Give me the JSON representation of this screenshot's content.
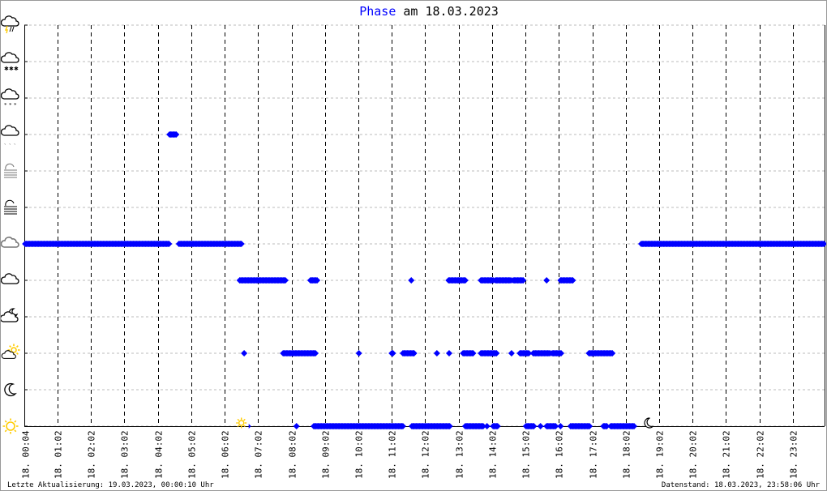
{
  "title": {
    "highlight": "Phase",
    "rest": " am 18.03.2023"
  },
  "footer": {
    "left": "Letzte Aktualisierung: 19.03.2023, 00:00:10 Uhr",
    "right": "Datenstand: 18.03.2023, 23:58:06 Uhr"
  },
  "colors": {
    "points": "#0000ff",
    "grid": "#bbbbbb",
    "hour_lines": "#000000",
    "sun": "#ffcc00"
  },
  "chart_data": {
    "type": "scatter",
    "title": "Phase am 18.03.2023",
    "x_axis": {
      "unit": "time of day",
      "range": [
        "00:04",
        "23:58"
      ],
      "tick_labels": [
        "18. 00:04",
        "18. 01:02",
        "18. 02:02",
        "18. 03:02",
        "18. 04:02",
        "18. 05:02",
        "18. 06:02",
        "18. 07:02",
        "18. 08:02",
        "18. 09:02",
        "18. 10:02",
        "18. 11:02",
        "18. 12:02",
        "18. 13:02",
        "18. 14:02",
        "18. 15:02",
        "18. 16:02",
        "18. 17:02",
        "18. 18:02",
        "18. 19:02",
        "18. 20:02",
        "18. 21:02",
        "18. 22:02",
        "18. 23:02"
      ]
    },
    "y_axis": {
      "type": "categorical-icons",
      "categories": [
        "sun-icon",
        "moon-icon",
        "partly-sunny-icon",
        "partly-moon-icon",
        "cloudy-icon",
        "overcast-icon",
        "fog-icon",
        "mist-icon",
        "rain-icon",
        "sleet-icon",
        "snow-icon",
        "thunderstorm-icon"
      ]
    },
    "grid": true,
    "markers": {
      "sunrise": "06:32",
      "sunset": "18:22"
    },
    "series": [
      {
        "category": "overcast-icon",
        "ranges": [
          [
            "00:04",
            "04:22"
          ],
          [
            "04:40",
            "06:32"
          ],
          [
            "18:30",
            "23:58"
          ]
        ]
      },
      {
        "category": "rain-icon",
        "ranges": [
          [
            "04:23",
            "04:36"
          ]
        ]
      },
      {
        "category": "cloudy-icon",
        "ranges": [
          [
            "06:29",
            "07:51"
          ],
          [
            "08:36",
            "08:49"
          ],
          [
            "11:37",
            "11:37"
          ],
          [
            "12:44",
            "13:14"
          ],
          [
            "13:42",
            "14:04"
          ],
          [
            "14:08",
            "14:37"
          ],
          [
            "14:40",
            "14:58"
          ],
          [
            "15:40",
            "15:40"
          ],
          [
            "16:05",
            "16:28"
          ]
        ]
      },
      {
        "category": "partly-sunny-icon",
        "ranges": [
          [
            "06:37",
            "06:37"
          ],
          [
            "07:47",
            "08:46"
          ],
          [
            "10:03",
            "10:03"
          ],
          [
            "11:02",
            "11:05"
          ],
          [
            "11:22",
            "11:43"
          ],
          [
            "12:23",
            "12:23"
          ],
          [
            "12:45",
            "12:45"
          ],
          [
            "13:10",
            "13:29"
          ],
          [
            "13:42",
            "14:11"
          ],
          [
            "14:37",
            "14:37"
          ],
          [
            "14:52",
            "15:08"
          ],
          [
            "15:16",
            "15:46"
          ],
          [
            "15:50",
            "16:06"
          ],
          [
            "16:56",
            "17:39"
          ]
        ]
      },
      {
        "category": "sun-icon",
        "ranges": [
          [
            "08:11",
            "08:11"
          ],
          [
            "08:42",
            "11:23"
          ],
          [
            "11:38",
            "12:46"
          ],
          [
            "13:14",
            "13:46"
          ],
          [
            "13:53",
            "13:53"
          ],
          [
            "14:04",
            "14:12"
          ],
          [
            "15:03",
            "15:18"
          ],
          [
            "15:29",
            "15:29"
          ],
          [
            "15:40",
            "15:57"
          ],
          [
            "16:05",
            "16:05"
          ],
          [
            "16:23",
            "16:58"
          ],
          [
            "17:22",
            "17:29"
          ],
          [
            "17:35",
            "18:18"
          ]
        ]
      }
    ]
  }
}
